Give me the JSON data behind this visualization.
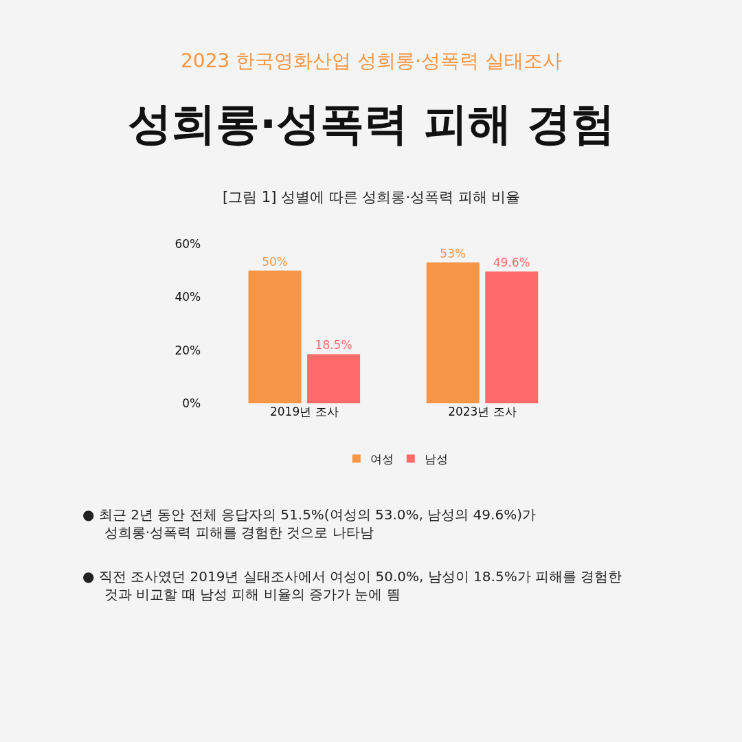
{
  "chart_data": {
    "type": "bar",
    "title": "성희롱·성폭력 피해 경험",
    "subtitle": "[그림 1] 성별에 따른 성희롱·성폭력 피해 비율",
    "categories": [
      "2019년 조사",
      "2023년 조사"
    ],
    "series": [
      {
        "name": "여성",
        "color": "#f79646",
        "values": [
          50,
          53
        ],
        "value_labels": [
          "50%",
          "53%"
        ]
      },
      {
        "name": "남성",
        "color": "#ff6b6b",
        "values": [
          18.5,
          49.6
        ],
        "value_labels": [
          "18.5%",
          "49.6%"
        ]
      }
    ],
    "ylim": [
      0,
      60
    ],
    "yticks": [
      {
        "value": 0,
        "label": "0%"
      },
      {
        "value": 20,
        "label": "20%"
      },
      {
        "value": 40,
        "label": "40%"
      },
      {
        "value": 60,
        "label": "60%"
      }
    ],
    "grid": false,
    "legend": "bottom",
    "annotations": [
      "2023 한국영화산업 성희롱·성폭력 실태조사",
      "● 최근 2년 동안 전체 응답자의 51.5%(여성의 53.0%, 남성의 49.6%)가 성희롱·성폭력 피해를 경험한 것으로 나타남",
      "● 직전 조사였던 2019년 실태조사에서 여성이 50.0%, 남성이 18.5%가 피해를 경험한 것과 비교할 때 남성 피해 비율의 증가가 눈에 띔"
    ]
  }
}
